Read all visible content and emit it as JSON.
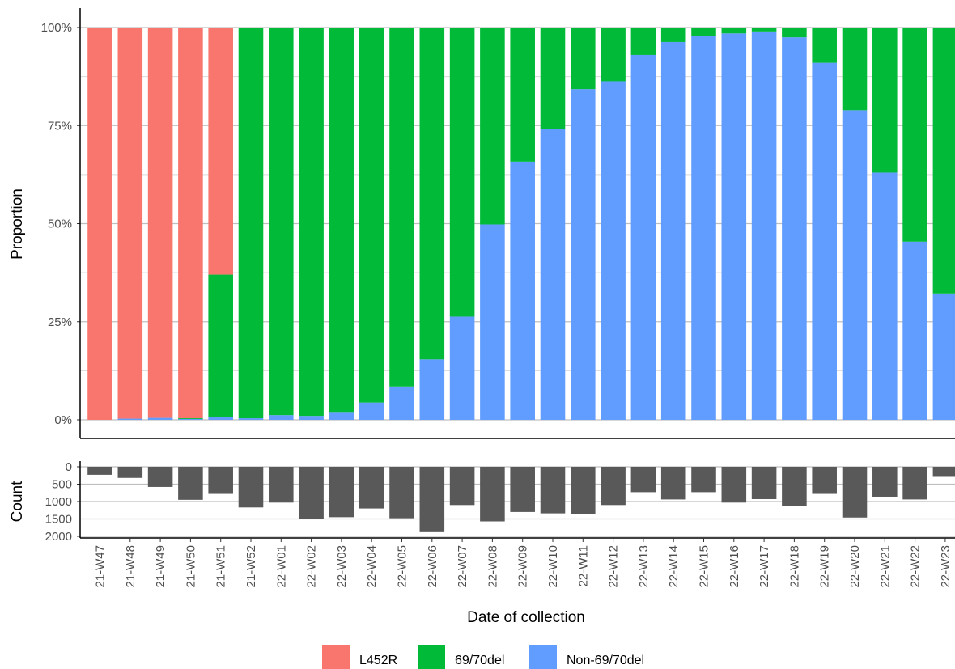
{
  "chart_data": [
    {
      "type": "bar",
      "stacked": true,
      "ylabel": "Proportion",
      "xlabel": "",
      "ylim": [
        0,
        1
      ],
      "y_ticks": [
        "0%",
        "25%",
        "50%",
        "75%",
        "100%"
      ],
      "grid": true,
      "categories": [
        "21-W47",
        "21-W48",
        "21-W49",
        "21-W50",
        "21-W51",
        "21-W52",
        "22-W01",
        "22-W02",
        "22-W03",
        "22-W04",
        "22-W05",
        "22-W06",
        "22-W07",
        "22-W08",
        "22-W09",
        "22-W10",
        "22-W11",
        "22-W12",
        "22-W13",
        "22-W14",
        "22-W15",
        "22-W16",
        "22-W17",
        "22-W18",
        "22-W19",
        "22-W20",
        "22-W21",
        "22-W22",
        "22-W23"
      ],
      "series": [
        {
          "name": "L452R",
          "color": "#F8766D",
          "values": [
            1.0,
            0.997,
            0.995,
            0.996,
            0.63,
            0.0,
            0.0,
            0.0,
            0.0,
            0.0,
            0.0,
            0.0,
            0.0,
            0.0,
            0.0,
            0.0,
            0.0,
            0.0,
            0.0,
            0.0,
            0.0,
            0.0,
            0.0,
            0.0,
            0.0,
            0.0,
            0.0,
            0.0,
            0.0
          ]
        },
        {
          "name": "69/70del",
          "color": "#00BA38",
          "values": [
            0.0,
            0.0,
            0.0,
            0.002,
            0.362,
            0.996,
            0.988,
            0.99,
            0.98,
            0.956,
            0.915,
            0.846,
            0.737,
            0.502,
            0.342,
            0.259,
            0.157,
            0.137,
            0.07,
            0.037,
            0.021,
            0.015,
            0.01,
            0.025,
            0.09,
            0.211,
            0.37,
            0.546,
            0.678
          ]
        },
        {
          "name": "Non-69/70del",
          "color": "#619CFF",
          "values": [
            0.0,
            0.003,
            0.005,
            0.002,
            0.008,
            0.004,
            0.012,
            0.01,
            0.02,
            0.044,
            0.085,
            0.154,
            0.263,
            0.498,
            0.658,
            0.741,
            0.843,
            0.863,
            0.93,
            0.963,
            0.979,
            0.985,
            0.99,
            0.975,
            0.91,
            0.789,
            0.63,
            0.454,
            0.322
          ]
        }
      ]
    },
    {
      "type": "bar",
      "ylabel": "Count",
      "xlabel": "Date of collection",
      "ylim": [
        0,
        2000
      ],
      "y_reversed": true,
      "y_ticks": [
        "0",
        "500",
        "1000",
        "1500",
        "2000"
      ],
      "grid": true,
      "color": "#595959",
      "categories": [
        "21-W47",
        "21-W48",
        "21-W49",
        "21-W50",
        "21-W51",
        "21-W52",
        "22-W01",
        "22-W02",
        "22-W03",
        "22-W04",
        "22-W05",
        "22-W06",
        "22-W07",
        "22-W08",
        "22-W09",
        "22-W10",
        "22-W11",
        "22-W12",
        "22-W13",
        "22-W14",
        "22-W15",
        "22-W16",
        "22-W17",
        "22-W18",
        "22-W19",
        "22-W20",
        "22-W21",
        "22-W22",
        "22-W23"
      ],
      "values": [
        230,
        320,
        580,
        950,
        780,
        1170,
        1030,
        1500,
        1450,
        1200,
        1480,
        1880,
        1100,
        1570,
        1300,
        1340,
        1350,
        1100,
        730,
        940,
        730,
        1030,
        930,
        1120,
        780,
        1460,
        860,
        940,
        290
      ]
    }
  ],
  "legend": {
    "placement": "bottom",
    "items": [
      {
        "label": "L452R",
        "color": "#F8766D"
      },
      {
        "label": "69/70del",
        "color": "#00BA38"
      },
      {
        "label": "Non-69/70del",
        "color": "#619CFF"
      }
    ]
  }
}
